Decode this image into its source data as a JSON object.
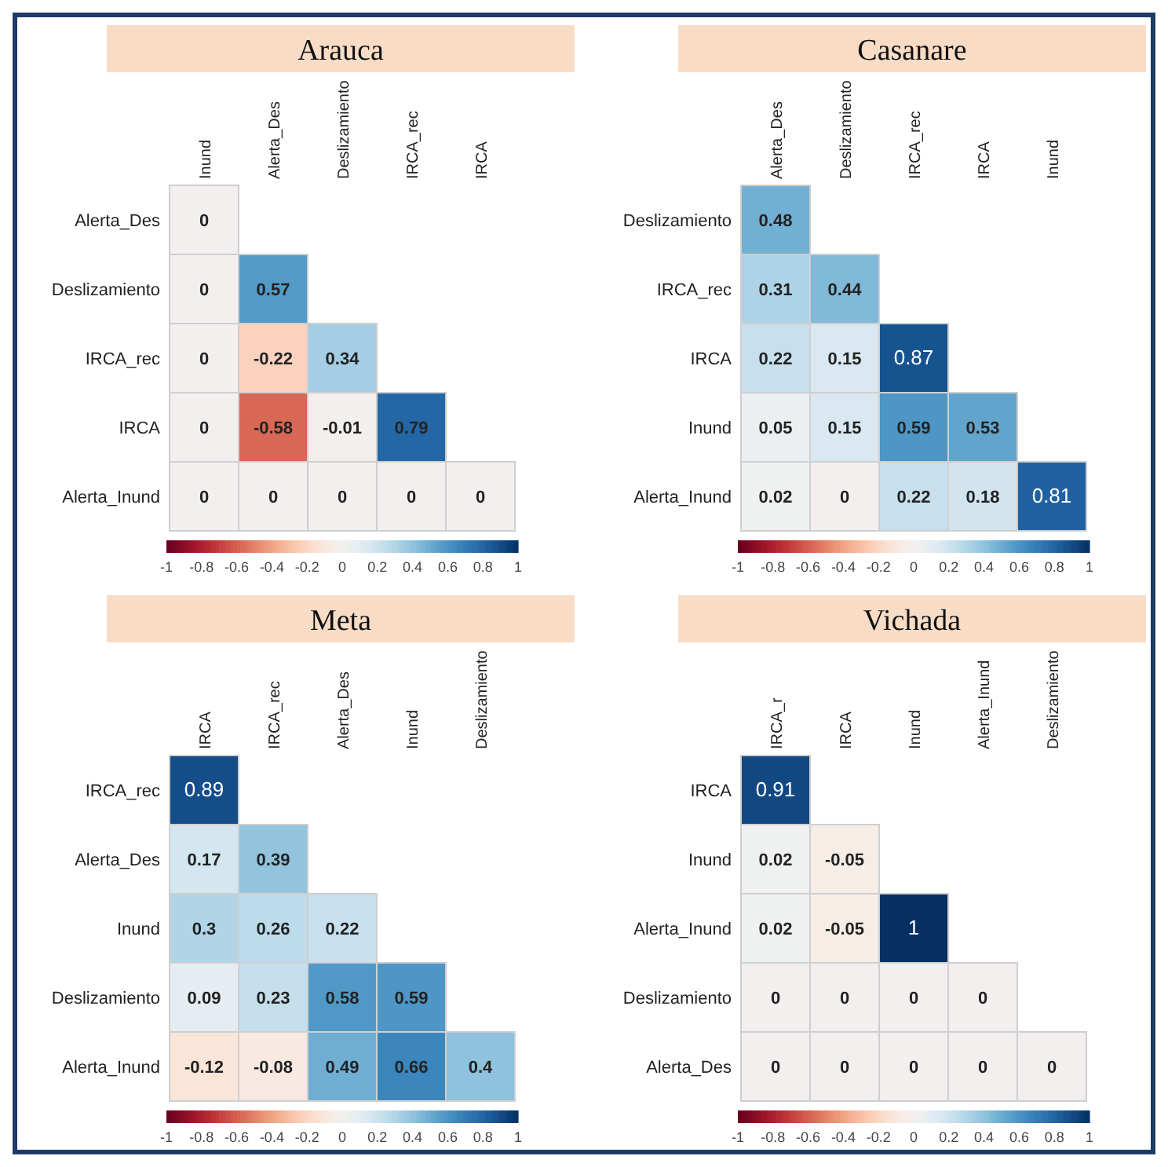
{
  "chart_data": [
    {
      "type": "heatmap",
      "title": "Arauca",
      "categories": [
        "Inund",
        "Alerta_Des",
        "Deslizamiento",
        "IRCA_rec",
        "IRCA"
      ],
      "y_categories": [
        "Alerta_Des",
        "Deslizamiento",
        "IRCA_rec",
        "IRCA",
        "Alerta_Inund"
      ],
      "cells": [
        [
          0,
          null,
          null,
          null,
          null
        ],
        [
          0,
          0.57,
          null,
          null,
          null
        ],
        [
          0,
          -0.22,
          0.34,
          null,
          null
        ],
        [
          0,
          -0.58,
          -0.01,
          0.79,
          null
        ],
        [
          0,
          0,
          0,
          0,
          0
        ]
      ],
      "clim": [
        -1,
        1
      ],
      "cticks": [
        -1,
        -0.8,
        -0.6,
        -0.4,
        -0.2,
        0,
        0.2,
        0.4,
        0.6,
        0.8,
        1
      ],
      "data_labels": true
    },
    {
      "type": "heatmap",
      "title": "Casanare",
      "categories": [
        "Alerta_Des",
        "Deslizamiento",
        "IRCA_rec",
        "IRCA",
        "Inund"
      ],
      "y_categories": [
        "Deslizamiento",
        "IRCA_rec",
        "IRCA",
        "Inund",
        "Alerta_Inund"
      ],
      "cells": [
        [
          0.48,
          null,
          null,
          null,
          null
        ],
        [
          0.31,
          0.44,
          null,
          null,
          null
        ],
        [
          0.22,
          0.15,
          0.87,
          null,
          null
        ],
        [
          0.05,
          0.15,
          0.59,
          0.53,
          null
        ],
        [
          0.02,
          0,
          0.22,
          0.18,
          0.81
        ]
      ],
      "clim": [
        -1,
        1
      ],
      "cticks": [
        -1,
        -0.8,
        -0.6,
        -0.4,
        -0.2,
        0,
        0.2,
        0.4,
        0.6,
        0.8,
        1
      ],
      "data_labels": true
    },
    {
      "type": "heatmap",
      "title": "Meta",
      "categories": [
        "IRCA",
        "IRCA_rec",
        "Alerta_Des",
        "Inund",
        "Deslizamiento"
      ],
      "y_categories": [
        "IRCA_rec",
        "Alerta_Des",
        "Inund",
        "Deslizamiento",
        "Alerta_Inund"
      ],
      "cells": [
        [
          0.89,
          null,
          null,
          null,
          null
        ],
        [
          0.17,
          0.39,
          null,
          null,
          null
        ],
        [
          0.3,
          0.26,
          0.22,
          null,
          null
        ],
        [
          0.09,
          0.23,
          0.58,
          0.59,
          null
        ],
        [
          -0.12,
          -0.08,
          0.49,
          0.66,
          0.4
        ]
      ],
      "clim": [
        -1,
        1
      ],
      "cticks": [
        -1,
        -0.8,
        -0.6,
        -0.4,
        -0.2,
        0,
        0.2,
        0.4,
        0.6,
        0.8,
        1
      ],
      "data_labels": true
    },
    {
      "type": "heatmap",
      "title": "Vichada",
      "categories": [
        "IRCA_r",
        "IRCA",
        "Inund",
        "Alerta_Inund",
        "Deslizamiento"
      ],
      "y_categories": [
        "IRCA",
        "Inund",
        "Alerta_Inund",
        "Deslizamiento",
        "Alerta_Des"
      ],
      "cells": [
        [
          0.91,
          null,
          null,
          null,
          null
        ],
        [
          0.02,
          -0.05,
          null,
          null,
          null
        ],
        [
          0.02,
          -0.05,
          1,
          null,
          null
        ],
        [
          0,
          0,
          0,
          0,
          null
        ],
        [
          0,
          0,
          0,
          0,
          0
        ]
      ],
      "clim": [
        -1,
        1
      ],
      "cticks": [
        -1,
        -0.8,
        -0.6,
        -0.4,
        -0.2,
        0,
        0.2,
        0.4,
        0.6,
        0.8,
        1
      ],
      "data_labels": true
    }
  ]
}
